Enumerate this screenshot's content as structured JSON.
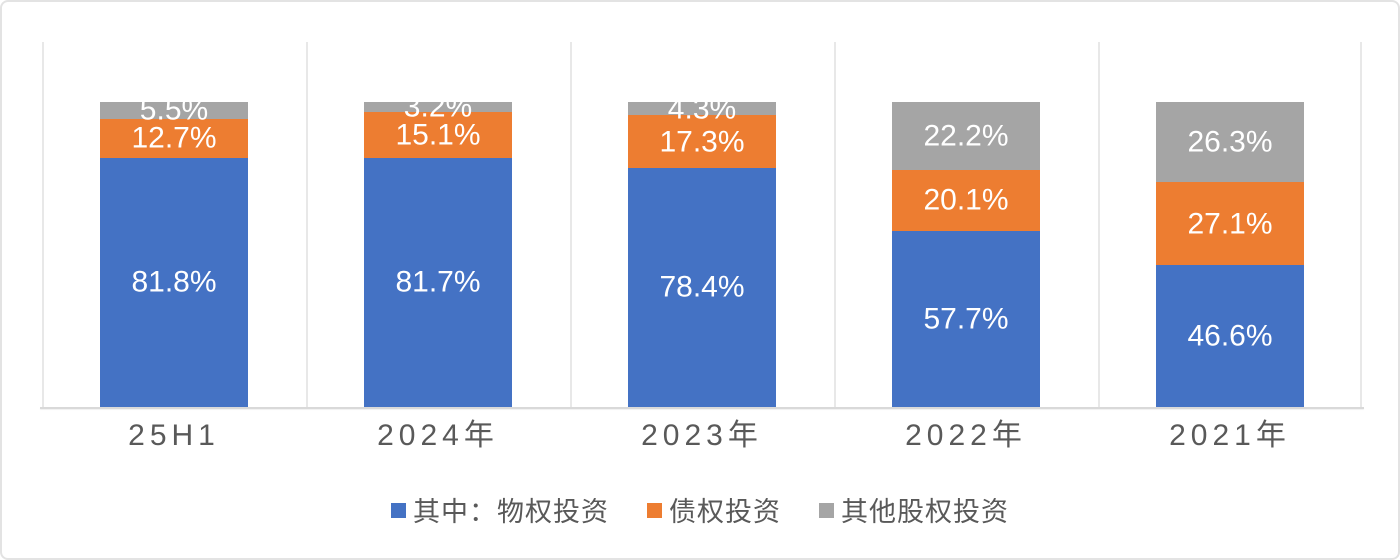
{
  "chart_data": {
    "type": "bar",
    "stacked": true,
    "unit": "%",
    "orientation": "vertical",
    "categories": [
      "25H1",
      "2024年",
      "2023年",
      "2022年",
      "2021年"
    ],
    "series": [
      {
        "name": "其中：物权投资",
        "color": "#4472C4",
        "values": [
          81.8,
          81.7,
          78.4,
          57.7,
          46.6
        ],
        "labels": [
          "81.8%",
          "81.7%",
          "78.4%",
          "57.7%",
          "46.6%"
        ]
      },
      {
        "name": "债权投资",
        "color": "#ED7D31",
        "values": [
          12.7,
          15.1,
          17.3,
          20.1,
          27.1
        ],
        "labels": [
          "12.7%",
          "15.1%",
          "17.3%",
          "20.1%",
          "27.1%"
        ]
      },
      {
        "name": "其他股权投资",
        "color": "#A5A5A5",
        "values": [
          5.5,
          3.2,
          4.3,
          22.2,
          26.3
        ],
        "labels": [
          "5.5%",
          "3.2%",
          "4.3%",
          "22.2%",
          "26.3%"
        ]
      }
    ],
    "ylim": [
      0,
      120
    ],
    "grid": "vertical-category-boundaries",
    "legend_position": "bottom",
    "title": "",
    "xlabel": "",
    "ylabel": ""
  },
  "colors": {
    "bar_blue": "#4472C4",
    "bar_orange": "#ED7D31",
    "bar_gray": "#A5A5A5",
    "gridline": "#E8E8E8",
    "baseline": "#D9D9D9",
    "axis_text": "#595959",
    "legend_text": "#595959",
    "data_label_text": "#FFFFFF",
    "card_border": "#E3E3E3",
    "background": "#FFFFFF"
  }
}
